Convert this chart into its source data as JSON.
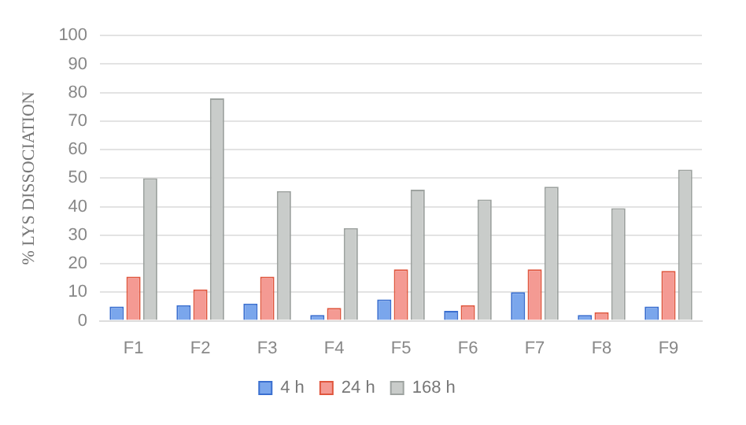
{
  "chart_data": {
    "type": "bar",
    "ylabel": "% LYS DISSOCIATION",
    "categories": [
      "F1",
      "F2",
      "F3",
      "F4",
      "F5",
      "F6",
      "F7",
      "F8",
      "F9"
    ],
    "series": [
      {
        "name": "4 h",
        "color": "#7aa6ec",
        "values": [
          5,
          5.5,
          6,
          2,
          7.5,
          3.5,
          10,
          2,
          5
        ]
      },
      {
        "name": "24 h",
        "color": "#f49a93",
        "values": [
          15.5,
          11,
          15.5,
          4.5,
          18,
          5.5,
          18,
          3,
          17.5
        ]
      },
      {
        "name": "168 h",
        "color": "#c9ccca",
        "values": [
          50,
          78,
          45.5,
          32.5,
          46,
          42.5,
          47,
          39.5,
          53
        ]
      }
    ],
    "ylim": [
      0,
      100
    ],
    "yticks": [
      0,
      10,
      20,
      30,
      40,
      50,
      60,
      70,
      80,
      90,
      100
    ],
    "grid": "y",
    "legend": "bottom"
  }
}
